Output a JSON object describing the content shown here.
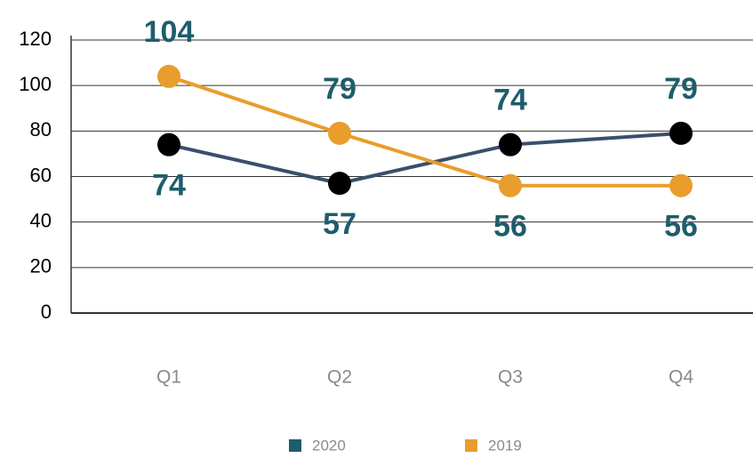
{
  "chart_data": {
    "type": "line",
    "categories": [
      "Q1",
      "Q2",
      "Q3",
      "Q4"
    ],
    "series": [
      {
        "name": "2020",
        "color": "#3a4f6d",
        "marker_color": "#000000",
        "legend_color": "#1e5d6b",
        "values": [
          74,
          57,
          74,
          79
        ]
      },
      {
        "name": "2019",
        "color": "#e89d2c",
        "marker_color": "#e89d2c",
        "legend_color": "#e89d2c",
        "values": [
          104,
          79,
          56,
          56
        ]
      }
    ],
    "label_color": "#1e5d6b",
    "ylim": [
      0,
      120
    ],
    "yticks": [
      0,
      20,
      40,
      60,
      80,
      100,
      120
    ],
    "grid": true,
    "legend": "bottom"
  }
}
